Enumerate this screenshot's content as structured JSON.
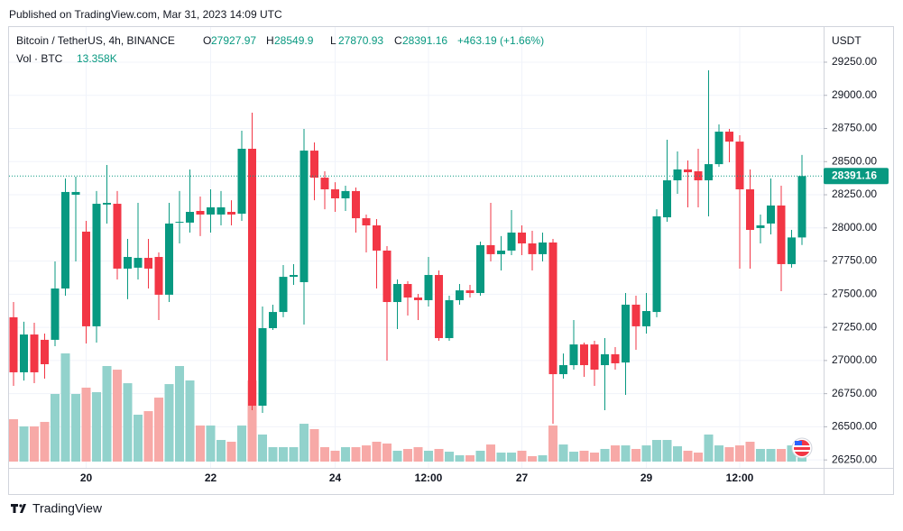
{
  "chart_data": {
    "type": "candlestick",
    "published": "Published on TradingView.com, Mar 31, 2023 14:09 UTC",
    "title": "Bitcoin / TetherUS, 4h, BINANCE",
    "ohlc_labels": [
      "O",
      "H",
      "L",
      "C"
    ],
    "change": "+463.19 (+1.66%)",
    "volume_title": "Vol · BTC",
    "volume_last_label": "13.358K",
    "y_unit": "USDT",
    "brand": "TradingView",
    "up_color": "#089981",
    "down_color": "#f23645",
    "volume_up_color": "#92d2cc",
    "volume_down_color": "#f7a9a7",
    "grid": true,
    "last_price_line": true,
    "categories": [
      null,
      null,
      null,
      null,
      null,
      null,
      null,
      "20",
      null,
      null,
      null,
      null,
      null,
      null,
      null,
      null,
      null,
      null,
      null,
      "22",
      null,
      null,
      null,
      null,
      null,
      null,
      null,
      null,
      null,
      null,
      null,
      "24",
      null,
      null,
      null,
      null,
      null,
      null,
      null,
      null,
      "12:00",
      null,
      null,
      null,
      null,
      null,
      null,
      null,
      null,
      "27",
      null,
      null,
      null,
      null,
      null,
      null,
      null,
      null,
      null,
      null,
      null,
      "29",
      null,
      null,
      null,
      null,
      null,
      null,
      null,
      null,
      "12:00",
      null,
      null,
      null,
      null,
      null,
      null
    ],
    "open": [
      27326,
      26911,
      27196,
      27156,
      27156,
      27543,
      28250,
      27972,
      27258,
      28176,
      28182,
      27693,
      27700,
      27774,
      27781,
      27496,
      28040,
      28040,
      28128,
      28101,
      28101,
      28121,
      28107,
      28597,
      26659,
      27244,
      27366,
      27631,
      27591,
      28583,
      28379,
      28291,
      28223,
      28278,
      28073,
      28019,
      27829,
      27441,
      27577,
      27475,
      27455,
      27645,
      27169,
      27455,
      27529,
      27509,
      27870,
      27802,
      27829,
      27965,
      27883,
      27802,
      27890,
      26897,
      26965,
      27121,
      27121,
      26965,
      27047,
      26985,
      27421,
      27258,
      27366,
      28080,
      28359,
      28441,
      28427,
      28359,
      28481,
      28726,
      28651,
      28291,
      27999,
      28033,
      28169,
      27727,
      27927.97
    ],
    "high": [
      27441,
      27292,
      27285,
      27203,
      27747,
      28373,
      28386,
      28053,
      28278,
      28475,
      28278,
      27917,
      28189,
      27917,
      27815,
      28189,
      28278,
      28441,
      28237,
      28291,
      28278,
      28209,
      28733,
      28869,
      27407,
      27421,
      27720,
      27727,
      28747,
      28645,
      28427,
      28345,
      28318,
      28305,
      28101,
      28067,
      27863,
      27611,
      27598,
      27502,
      27781,
      27679,
      27489,
      27577,
      27570,
      27897,
      28189,
      27938,
      28135,
      28019,
      27978,
      27965,
      27917,
      27053,
      27305,
      27135,
      27149,
      27169,
      27101,
      27509,
      27489,
      27509,
      28141,
      28665,
      28577,
      28509,
      28597,
      29189,
      28781,
      28747,
      28699,
      28441,
      28101,
      28373,
      28318,
      27985,
      28549.9
    ],
    "low": [
      26809,
      26849,
      26829,
      26863,
      27108,
      27489,
      27747,
      27128,
      27135,
      28033,
      27611,
      27462,
      27611,
      27543,
      27305,
      27441,
      27883,
      27965,
      27938,
      27965,
      28019,
      28019,
      28053,
      26625,
      26605,
      27230,
      27326,
      27570,
      27271,
      28209,
      28141,
      28121,
      28128,
      27965,
      27815,
      27543,
      26999,
      27237,
      27339,
      27305,
      27407,
      27149,
      27149,
      27421,
      27475,
      27489,
      27747,
      27679,
      27795,
      27795,
      27679,
      27747,
      26523,
      26863,
      26931,
      26877,
      26809,
      26625,
      26931,
      26741,
      27081,
      27203,
      27326,
      28046,
      28257,
      28155,
      28155,
      28087,
      28461,
      28495,
      27693,
      27693,
      27883,
      27951,
      27523,
      27700,
      27870.93
    ],
    "close": [
      26911,
      27196,
      26911,
      26972,
      27543,
      28271,
      28271,
      27258,
      28182,
      28189,
      27693,
      27781,
      27774,
      27693,
      27496,
      28033,
      28046,
      28121,
      28101,
      28155,
      28155,
      28101,
      28597,
      26659,
      27244,
      27366,
      27631,
      27645,
      28583,
      28379,
      28291,
      28223,
      28278,
      28073,
      28019,
      27829,
      27441,
      27577,
      27475,
      27455,
      27645,
      27169,
      27455,
      27529,
      27509,
      27870,
      27802,
      27829,
      27965,
      27883,
      27802,
      27890,
      26897,
      26965,
      27121,
      26965,
      26931,
      27047,
      26979,
      27421,
      27258,
      27373,
      28087,
      28359,
      28441,
      28420,
      28359,
      28481,
      28726,
      28651,
      28291,
      27985,
      28019,
      28169,
      27727,
      27927.97,
      28391.16
    ],
    "volume": [
      52300,
      43400,
      43400,
      49000,
      83500,
      133600,
      83500,
      91300,
      85700,
      118000,
      113500,
      96800,
      57900,
      62300,
      79000,
      95700,
      118000,
      100200,
      44500,
      44500,
      26700,
      24500,
      44500,
      100200,
      33400,
      17800,
      17800,
      17800,
      46700,
      40100,
      17800,
      13400,
      17800,
      17800,
      20000,
      24500,
      22300,
      13400,
      15600,
      17800,
      13400,
      15600,
      12200,
      7800,
      7800,
      13400,
      21100,
      11100,
      11100,
      13400,
      6700,
      7800,
      44500,
      21100,
      12200,
      13400,
      11100,
      15600,
      20000,
      20000,
      15600,
      20000,
      26700,
      26700,
      18900,
      13400,
      11100,
      33400,
      20000,
      17800,
      20000,
      24500,
      15600,
      15600,
      15600,
      20000,
      13358
    ],
    "ylim": [
      26190,
      29515
    ],
    "yticks": [
      {
        "value": 26250,
        "label": "26250.00"
      },
      {
        "value": 26500,
        "label": "26500.00"
      },
      {
        "value": 26750,
        "label": "26750.00"
      },
      {
        "value": 27000,
        "label": "27000.00"
      },
      {
        "value": 27250,
        "label": "27250.00"
      },
      {
        "value": 27500,
        "label": "27500.00"
      },
      {
        "value": 27750,
        "label": "27750.00"
      },
      {
        "value": 28000,
        "label": "28000.00"
      },
      {
        "value": 28250,
        "label": "28250.00"
      },
      {
        "value": 28500,
        "label": "28500.00"
      },
      {
        "value": 28750,
        "label": "28750.00"
      },
      {
        "value": 29000,
        "label": "29000.00"
      },
      {
        "value": 29250,
        "label": "29250.00"
      }
    ]
  }
}
